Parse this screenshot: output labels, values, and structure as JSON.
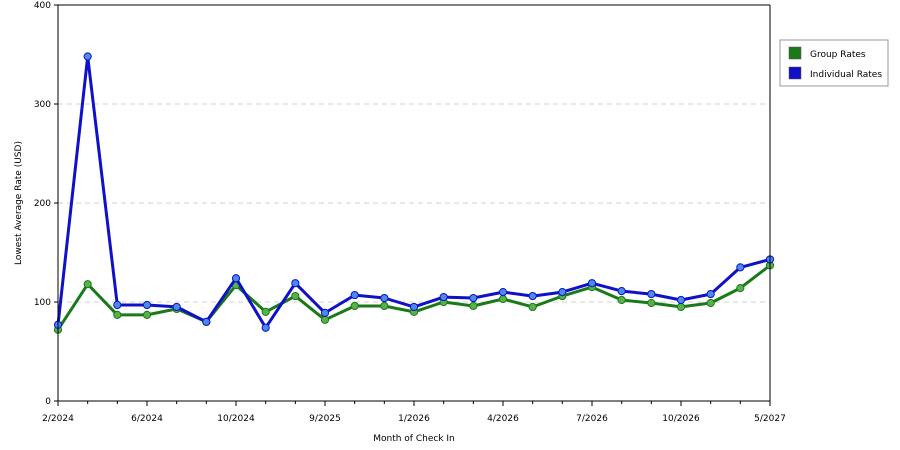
{
  "chart_data": {
    "type": "line",
    "title": "",
    "xlabel": "Month of Check In",
    "ylabel": "Lowest Average Rate (USD)",
    "ylim": [
      0,
      400
    ],
    "yticks": [
      0,
      100,
      200,
      300,
      400
    ],
    "grid": true,
    "legend_position": "top-right",
    "x_tick_labels": [
      "2/2024",
      "6/2024",
      "10/2024",
      "9/2025",
      "1/2026",
      "4/2026",
      "7/2026",
      "10/2026",
      "5/2027"
    ],
    "series": [
      {
        "name": "Group Rates",
        "color": "#1a7a1a",
        "marker_color": "#5ab04a",
        "values": [
          72,
          118,
          87,
          87,
          93,
          80,
          117,
          90,
          106,
          82,
          96,
          96,
          90,
          100,
          96,
          103,
          95,
          106,
          115,
          102,
          99,
          95,
          99,
          114,
          137
        ]
      },
      {
        "name": "Individual Rates",
        "color": "#1010c8",
        "marker_color": "#4a8ae8",
        "values": [
          77,
          348,
          97,
          97,
          95,
          80,
          124,
          74,
          119,
          89,
          107,
          104,
          95,
          105,
          104,
          110,
          106,
          110,
          119,
          111,
          108,
          102,
          108,
          135,
          143
        ]
      }
    ]
  }
}
